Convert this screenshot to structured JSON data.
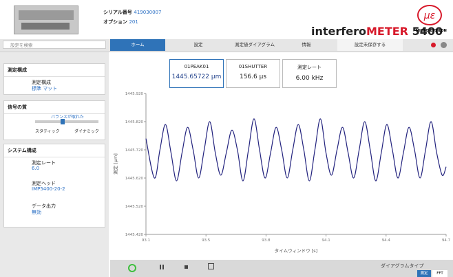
{
  "header": {
    "serial_label": "シリアル番号",
    "serial": "419030007",
    "option_label": "オプション",
    "option": "201",
    "product_prefix": "interfero",
    "product_highlight": "METER",
    "product_model": "5400",
    "logo_text": "MICRO-EPSILON"
  },
  "search": {
    "placeholder": "設定を検索"
  },
  "nav": {
    "tabs": [
      "ホーム",
      "設定",
      "測定値ダイアグラム",
      "情報"
    ],
    "save": "設定未保存する"
  },
  "sidebar": {
    "sections": [
      {
        "title": "測定構成",
        "items": [
          {
            "label": "測定構成",
            "value": "標準 マット"
          }
        ]
      },
      {
        "title": "信号の質",
        "balance": "バランスが取れた",
        "left": "スタティック",
        "right": "ダイナミック"
      },
      {
        "title": "システム構成",
        "items": [
          {
            "label": "測定レート",
            "value": "6.0"
          },
          {
            "label": "測定ヘッド",
            "value": "IMP5400-20-2"
          },
          {
            "label": "データ出力",
            "value": "無効"
          }
        ]
      }
    ]
  },
  "readouts": [
    {
      "name": "01PEAK01",
      "value": "1445.65722",
      "unit": "μm"
    },
    {
      "name": "01SHUTTER",
      "value": "156.6",
      "unit": "μs"
    },
    {
      "name": "測定レート",
      "value": "6.00",
      "unit": "kHz"
    }
  ],
  "chart_data": {
    "type": "line",
    "xlabel": "タイムウィンドウ [s]",
    "ylabel": "測定 [μm]",
    "xlim": [
      93.14,
      94.74
    ],
    "xticks": [
      {
        "value": 93.14,
        "label": "93.1"
      },
      {
        "value": 93.46,
        "label": "93.5"
      },
      {
        "value": 93.78,
        "label": "93.8"
      },
      {
        "value": 94.1,
        "label": "94.1"
      },
      {
        "value": 94.42,
        "label": "94.4"
      },
      {
        "value": 94.74,
        "label": "94.7"
      }
    ],
    "ylim": [
      1445.42,
      1445.92
    ],
    "yticks": [
      {
        "value": 1445.42,
        "label": "1445.420"
      },
      {
        "value": 1445.52,
        "label": "1445.520"
      },
      {
        "value": 1445.62,
        "label": "1445.620"
      },
      {
        "value": 1445.72,
        "label": "1445.720"
      },
      {
        "value": 1445.82,
        "label": "1445.820"
      },
      {
        "value": 1445.92,
        "label": "1445.920"
      }
    ],
    "grid": false,
    "x": [
      93.14,
      93.185,
      93.2145,
      93.244,
      93.2735,
      93.303,
      93.3325,
      93.362,
      93.3915,
      93.421,
      93.4505,
      93.48,
      93.5095,
      93.539,
      93.5685,
      93.598,
      93.6275,
      93.657,
      93.6865,
      93.716,
      93.7455,
      93.775,
      93.8045,
      93.834,
      93.8635,
      93.893,
      93.9225,
      93.952,
      93.9815,
      94.011,
      94.0405,
      94.07,
      94.0995,
      94.129,
      94.1585,
      94.188,
      94.2175,
      94.247,
      94.2765,
      94.306,
      94.3355,
      94.365,
      94.3945,
      94.424,
      94.4535,
      94.483,
      94.5125,
      94.542,
      94.5715,
      94.601,
      94.6305,
      94.66,
      94.6895,
      94.719,
      94.74
    ],
    "series": [
      {
        "color": "#23237e",
        "values": [
          1445.76,
          1445.62,
          1445.72,
          1445.81,
          1445.71,
          1445.61,
          1445.71,
          1445.8,
          1445.72,
          1445.62,
          1445.72,
          1445.82,
          1445.71,
          1445.63,
          1445.71,
          1445.79,
          1445.72,
          1445.61,
          1445.72,
          1445.83,
          1445.72,
          1445.62,
          1445.71,
          1445.8,
          1445.72,
          1445.62,
          1445.72,
          1445.81,
          1445.72,
          1445.61,
          1445.72,
          1445.83,
          1445.71,
          1445.63,
          1445.72,
          1445.8,
          1445.71,
          1445.62,
          1445.72,
          1445.82,
          1445.72,
          1445.61,
          1445.71,
          1445.81,
          1445.72,
          1445.62,
          1445.71,
          1445.8,
          1445.72,
          1445.62,
          1445.72,
          1445.82,
          1445.71,
          1445.63,
          1445.66
        ]
      }
    ]
  },
  "footer": {
    "diagram_type": "ダイアグラムタイプ",
    "buttons": [
      "測定",
      "FFT"
    ]
  }
}
